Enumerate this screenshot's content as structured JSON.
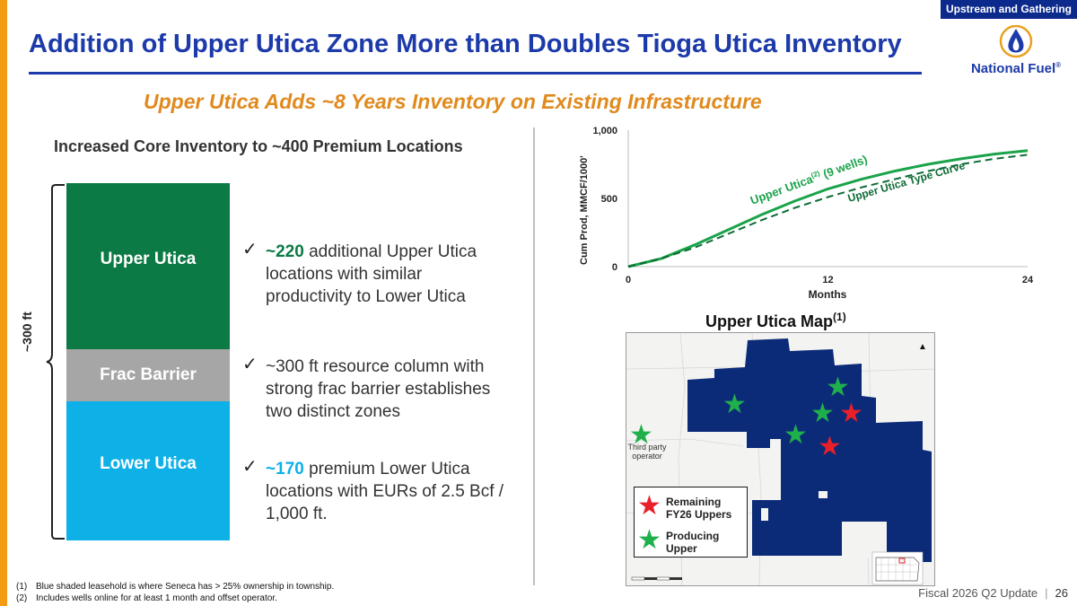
{
  "section_tag": "Upstream and Gathering",
  "title": "Addition of Upper Utica Zone More than Doubles Tioga Utica Inventory",
  "logo": {
    "text": "National Fuel",
    "reg": "®"
  },
  "subtitle": "Upper Utica Adds ~8 Years Inventory on Existing Infrastructure",
  "left_heading": "Increased Core Inventory to ~400 Premium Locations",
  "column": {
    "upper": "Upper Utica",
    "barrier": "Frac Barrier",
    "lower": "Lower Utica",
    "thickness_label": "~300 ft"
  },
  "bullets": [
    {
      "highlight": "~220",
      "text": " additional Upper Utica locations with similar productivity to Lower Utica"
    },
    {
      "highlight": "",
      "text": "~300 ft resource column with strong frac barrier establishes two distinct zones"
    },
    {
      "highlight": "~170",
      "text": " premium Lower Utica locations with EURs of 2.5 Bcf / 1,000 ft."
    }
  ],
  "chart_data": {
    "type": "line",
    "xlabel": "Months",
    "ylabel": "Cum Prod, MMCF/1000'",
    "xlim": [
      0,
      24
    ],
    "ylim": [
      0,
      1000
    ],
    "x_ticks": [
      "0",
      "12",
      "24"
    ],
    "y_ticks": [
      "0",
      "500",
      "1,000"
    ],
    "series": [
      {
        "name": "Upper Utica(2) (9 wells)",
        "style": "solid",
        "color": "#1aa34a",
        "x": [
          0,
          2,
          4,
          6,
          8,
          10,
          12,
          14,
          16,
          18,
          20,
          22,
          24
        ],
        "y": [
          0,
          60,
          160,
          270,
          380,
          480,
          570,
          640,
          700,
          750,
          790,
          825,
          850
        ]
      },
      {
        "name": "Upper Utica Type Curve",
        "style": "dashed",
        "color": "#0d6b36",
        "x": [
          0,
          2,
          4,
          6,
          8,
          10,
          12,
          14,
          16,
          18,
          20,
          22,
          24
        ],
        "y": [
          0,
          60,
          140,
          240,
          340,
          430,
          510,
          580,
          640,
          700,
          750,
          790,
          820
        ]
      }
    ]
  },
  "map": {
    "title": "Upper Utica Map",
    "title_sup": "(1)",
    "third_party_label": "Third party operator",
    "legend": [
      {
        "label": "Remaining FY26 Uppers",
        "color": "#e8202a"
      },
      {
        "label": "Producing Upper",
        "color": "#1fb04b"
      }
    ]
  },
  "footnotes": [
    {
      "num": "(1)",
      "text": "Blue shaded leasehold is where Seneca has > 25% ownership in township."
    },
    {
      "num": "(2)",
      "text": "Includes wells online for at least 1 month and offset operator."
    }
  ],
  "footer": {
    "label": "Fiscal 2026 Q2 Update",
    "page": "26"
  },
  "colors": {
    "brand_blue": "#1c3aa9",
    "orange": "#e08a1e",
    "green": "#0c7a44",
    "light_blue": "#0eb0e8"
  }
}
